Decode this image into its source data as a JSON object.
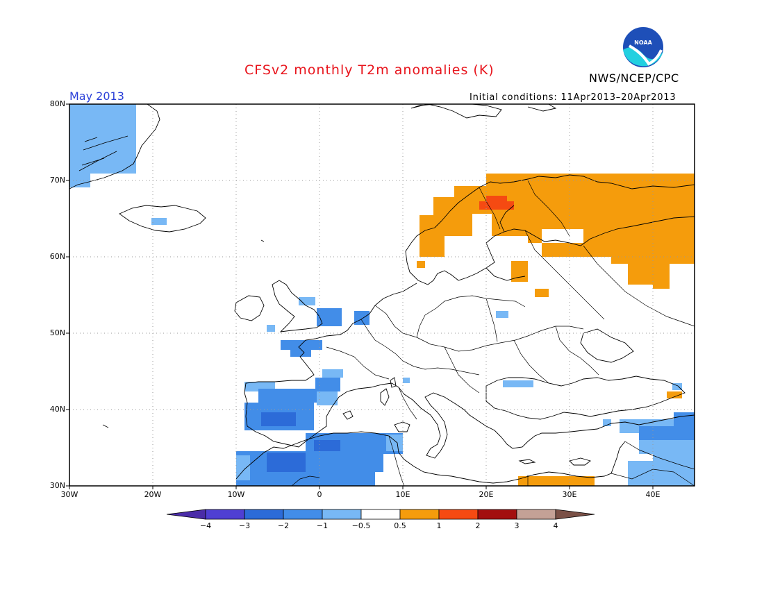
{
  "title": "CFSv2 monthly T2m anomalies (K)",
  "agency": "NWS/NCEP/CPC",
  "logo": {
    "name": "noaa-logo",
    "text": "NOAA"
  },
  "month_label": "May 2013",
  "initial_conditions": "Initial conditions: 11Apr2013–20Apr2013",
  "map": {
    "lon_range": [
      -30,
      45
    ],
    "lat_range": [
      30,
      80
    ],
    "grid": "dotted",
    "lat_labels": [
      "80N",
      "70N",
      "60N",
      "50N",
      "40N",
      "30N"
    ],
    "lon_labels": [
      "30W",
      "20W",
      "10W",
      "0",
      "10E",
      "20E",
      "30E",
      "40E"
    ]
  },
  "colorbar": {
    "labels": [
      "−4",
      "−3",
      "−2",
      "−1",
      "−0.5",
      "0.5",
      "1",
      "2",
      "3",
      "4"
    ],
    "colors": [
      "#4a2ca8",
      "#4f3fd3",
      "#2c6bd8",
      "#428de8",
      "#78b8f5",
      "#ffffff",
      "#f59c0c",
      "#f54a12",
      "#a30f0f",
      "#c4a196",
      "#7a5046"
    ]
  }
}
